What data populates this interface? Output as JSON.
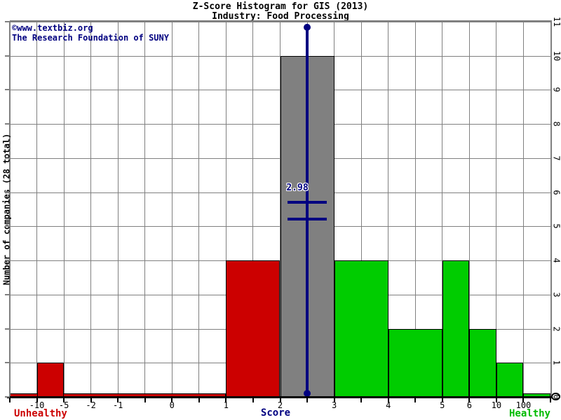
{
  "header": {
    "title": "Z-Score Histogram for GIS (2013)",
    "subtitle": "Industry: Food Processing"
  },
  "watermark": {
    "line1": "©www.textbiz.org",
    "line2": "The Research Foundation of SUNY"
  },
  "axes": {
    "y_label": "Number of companies (28 total)",
    "x_label": "Score",
    "left_caption": "Unhealthy",
    "right_caption": "Healthy"
  },
  "colors": {
    "unhealthy": "#cc0000",
    "healthy": "#00cc00",
    "neutral": "#808080",
    "marker": "#000080",
    "grid": "#808080",
    "axis": "#000000",
    "watermark_text": "#000080"
  },
  "chart_data": {
    "type": "bar",
    "title": "Z-Score Histogram for GIS (2013)",
    "subtitle": "Industry: Food Processing",
    "xlabel": "Score",
    "ylabel": "Number of companies (28 total)",
    "total_companies": 28,
    "ylim": [
      0,
      11
    ],
    "grid": true,
    "y_ticks": [
      0,
      1,
      2,
      3,
      4,
      5,
      6,
      7,
      8,
      9,
      10,
      11
    ],
    "x_tick_labels": [
      "-10",
      "-5",
      "-2",
      "-1",
      "0",
      "1",
      "2",
      "3",
      "4",
      "5",
      "6",
      "10",
      "100"
    ],
    "x_ticks": [
      {
        "cell": 1,
        "label": "-10"
      },
      {
        "cell": 2,
        "label": "-5"
      },
      {
        "cell": 3,
        "label": "-2"
      },
      {
        "cell": 4,
        "label": "-1"
      },
      {
        "cell": 6,
        "label": "0"
      },
      {
        "cell": 8,
        "label": "1"
      },
      {
        "cell": 10,
        "label": "2"
      },
      {
        "cell": 12,
        "label": "3"
      },
      {
        "cell": 14,
        "label": "4"
      },
      {
        "cell": 16,
        "label": "5"
      },
      {
        "cell": 17,
        "label": "6"
      },
      {
        "cell": 18,
        "label": "10"
      },
      {
        "cell": 19,
        "label": "100"
      }
    ],
    "bins": [
      {
        "range": "-10 to -5",
        "count": 1,
        "status": "unhealthy",
        "from_cell": 1,
        "to_cell": 2
      },
      {
        "range": "1 to 2",
        "count": 4,
        "status": "unhealthy",
        "from_cell": 8,
        "to_cell": 10
      },
      {
        "range": "2 to 3",
        "count": 10,
        "status": "neutral",
        "from_cell": 10,
        "to_cell": 12
      },
      {
        "range": "3 to 4",
        "count": 4,
        "status": "healthy",
        "from_cell": 12,
        "to_cell": 14
      },
      {
        "range": "4 to 5",
        "count": 2,
        "status": "healthy",
        "from_cell": 14,
        "to_cell": 16
      },
      {
        "range": "5 to 6",
        "count": 4,
        "status": "healthy",
        "from_cell": 16,
        "to_cell": 17
      },
      {
        "range": "6 to 10",
        "count": 2,
        "status": "healthy",
        "from_cell": 17,
        "to_cell": 18
      },
      {
        "range": "10 to 100",
        "count": 1,
        "status": "healthy",
        "from_cell": 18,
        "to_cell": 19
      }
    ],
    "baseline_strips": [
      {
        "range": "below 1",
        "count": 0,
        "status": "unhealthy",
        "from_cell": 0,
        "to_cell": 8
      },
      {
        "range": "above 100",
        "count": 0,
        "status": "healthy",
        "from_cell": 19,
        "to_cell": 20
      }
    ],
    "marker": {
      "label": "2.98",
      "value": 2.98,
      "cell_position": 11
    }
  }
}
